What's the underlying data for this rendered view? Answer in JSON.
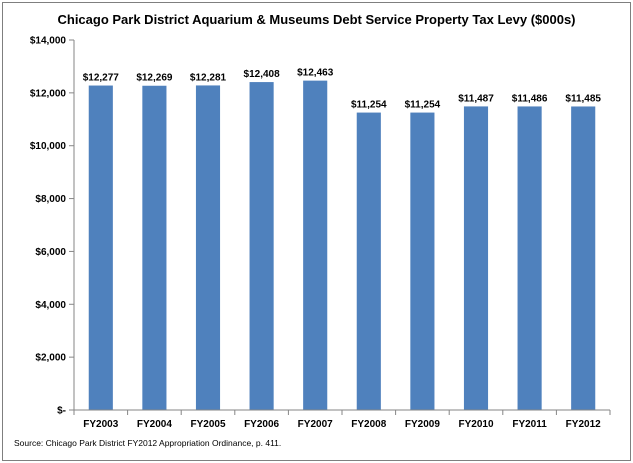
{
  "chart_data": {
    "type": "bar",
    "title": "Chicago Park District Aquarium  & Museums Debt Service Property Tax Levy ($000s)",
    "categories": [
      "FY2003",
      "FY2004",
      "FY2005",
      "FY2006",
      "FY2007",
      "FY2008",
      "FY2009",
      "FY2010",
      "FY2011",
      "FY2012"
    ],
    "values": [
      12277,
      12269,
      12281,
      12408,
      12463,
      11254,
      11254,
      11487,
      11486,
      11485
    ],
    "data_labels": [
      "$12,277",
      "$12,269",
      "$12,281",
      "$12,408",
      "$12,463",
      "$11,254",
      "$11,254",
      "$11,487",
      "$11,486",
      "$11,485"
    ],
    "ylim": [
      0,
      14000
    ],
    "y_ticks": [
      0,
      2000,
      4000,
      6000,
      8000,
      10000,
      12000,
      14000
    ],
    "y_tick_labels": [
      "$-",
      "$2,000",
      "$4,000",
      "$6,000",
      "$8,000",
      "$10,000",
      "$12,000",
      "$14,000"
    ],
    "grid": false,
    "legend": "none",
    "bar_color": "#4f81bd",
    "xlabel": "",
    "ylabel": ""
  },
  "source_note": "Source: Chicago Park District FY2012 Appropriation Ordinance, p. 411."
}
